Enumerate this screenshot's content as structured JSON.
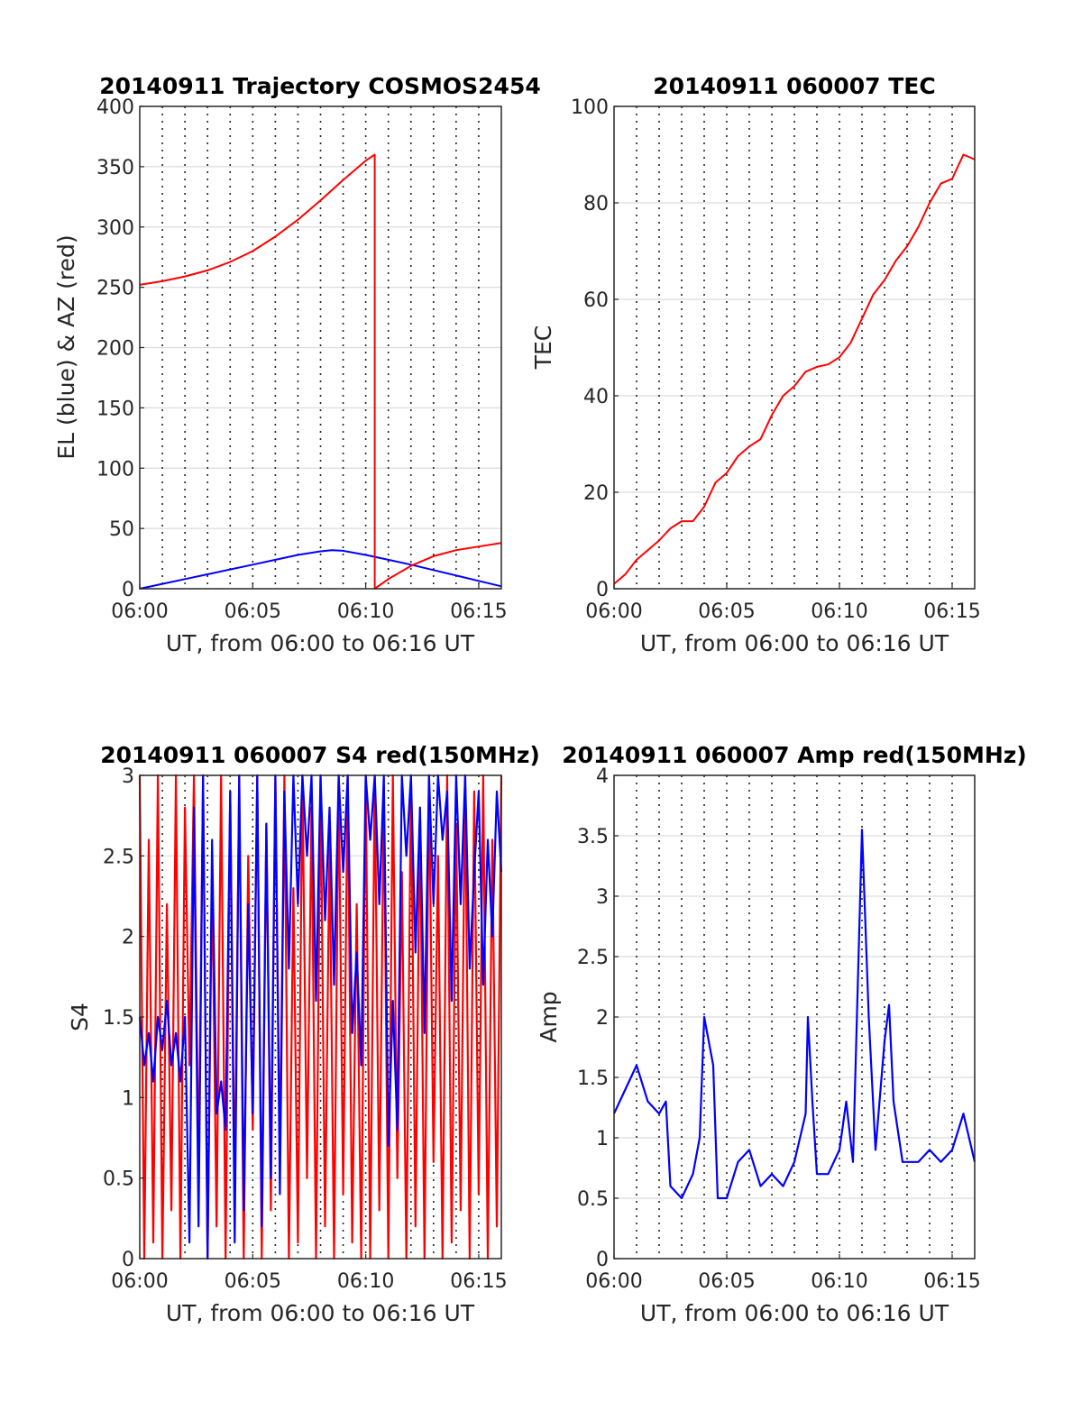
{
  "chart_data": [
    {
      "id": "traj",
      "type": "line",
      "title": "20140911 Trajectory COSMOS2454",
      "xlabel": "UT, from 06:00 to 06:16 UT",
      "ylabel": "EL (blue) & AZ (red)",
      "xlim": [
        "06:00",
        "06:16"
      ],
      "x_ticks": [
        "06:00",
        "06:05",
        "06:10",
        "06:15"
      ],
      "ylim": [
        0,
        400
      ],
      "y_ticks": [
        "0",
        "50",
        "100",
        "150",
        "200",
        "250",
        "300",
        "350",
        "400"
      ],
      "grid": "vertical dotted each minute, horizontal solid at y ticks",
      "series": [
        {
          "color": "#0000ff",
          "x": [
            "06:00",
            "06:01",
            "06:02",
            "06:03",
            "06:04",
            "06:05",
            "06:06",
            "06:07",
            "06:08",
            "06:08.5",
            "06:09",
            "06:10",
            "06:11",
            "06:12",
            "06:13",
            "06:14",
            "06:15",
            "06:16"
          ],
          "y": [
            0,
            4,
            8,
            12,
            16,
            20,
            24,
            28,
            31,
            32,
            31.5,
            28,
            24,
            20,
            15.5,
            11,
            6.5,
            2
          ]
        },
        {
          "color": "#ff0000",
          "x": [
            "06:00",
            "06:01",
            "06:02",
            "06:03",
            "06:04",
            "06:05",
            "06:06",
            "06:07",
            "06:08",
            "06:09",
            "06:10",
            "06:10.4",
            "06:10.4",
            "06:11",
            "06:12",
            "06:13",
            "06:14",
            "06:15",
            "06:16"
          ],
          "y": [
            252,
            255,
            259,
            264,
            271,
            280,
            292,
            306,
            322,
            339,
            355,
            360,
            0,
            8,
            19,
            27,
            32,
            35,
            38
          ]
        }
      ]
    },
    {
      "id": "tec",
      "type": "line",
      "title": "20140911 060007 TEC",
      "xlabel": "UT, from 06:00 to 06:16 UT",
      "ylabel": "TEC",
      "xlim": [
        "06:00",
        "06:16"
      ],
      "x_ticks": [
        "06:00",
        "06:05",
        "06:10",
        "06:15"
      ],
      "ylim": [
        0,
        100
      ],
      "y_ticks": [
        "0",
        "20",
        "40",
        "60",
        "80",
        "100"
      ],
      "grid": "vertical dotted each minute, horizontal solid at y ticks",
      "series": [
        {
          "color": "#ff0000",
          "x": [
            "06:00",
            "06:00.5",
            "06:01",
            "06:01.5",
            "06:02",
            "06:02.5",
            "06:03",
            "06:03.5",
            "06:04",
            "06:04.5",
            "06:05",
            "06:05.5",
            "06:06",
            "06:06.5",
            "06:07",
            "06:07.5",
            "06:08",
            "06:08.5",
            "06:09",
            "06:09.5",
            "06:10",
            "06:10.5",
            "06:11",
            "06:11.5",
            "06:12",
            "06:12.5",
            "06:13",
            "06:13.5",
            "06:14",
            "06:14.5",
            "06:15",
            "06:15.5",
            "06:16"
          ],
          "y": [
            1,
            3,
            6,
            8,
            10,
            12.5,
            14,
            14,
            17,
            22,
            24,
            27.5,
            29.5,
            31,
            36,
            40,
            42,
            45,
            46,
            46.5,
            48,
            51,
            56,
            61,
            64,
            68,
            71,
            75,
            80,
            84,
            85,
            90,
            89
          ]
        }
      ]
    },
    {
      "id": "s4",
      "type": "line",
      "title": "20140911 060007 S4 red(150MHz)",
      "xlabel": "UT, from 06:00 to 06:16 UT",
      "ylabel": "S4",
      "xlim": [
        "06:00",
        "06:16"
      ],
      "x_ticks": [
        "06:00",
        "06:05",
        "06:10",
        "06:15"
      ],
      "ylim": [
        0,
        3
      ],
      "y_ticks": [
        "0",
        "0.5",
        "1",
        "1.5",
        "2",
        "2.5",
        "3"
      ],
      "grid": "vertical dotted each minute, horizontal solid at y ticks",
      "series": [
        {
          "color": "#ff0000",
          "x": [
            "06:00",
            "06:00.2",
            "06:00.4",
            "06:00.6",
            "06:00.8",
            "06:01",
            "06:01.2",
            "06:01.4",
            "06:01.6",
            "06:01.8",
            "06:02",
            "06:02.2",
            "06:02.4",
            "06:02.6",
            "06:02.8",
            "06:03",
            "06:03.2",
            "06:03.4",
            "06:03.6",
            "06:03.8",
            "06:04",
            "06:04.2",
            "06:04.4",
            "06:04.6",
            "06:04.8",
            "06:05",
            "06:05.2",
            "06:05.4",
            "06:05.6",
            "06:05.8",
            "06:06",
            "06:06.2",
            "06:06.4",
            "06:06.6",
            "06:06.8",
            "06:07",
            "06:07.2",
            "06:07.4",
            "06:07.6",
            "06:07.8",
            "06:08",
            "06:08.2",
            "06:08.4",
            "06:08.6",
            "06:08.8",
            "06:09",
            "06:09.2",
            "06:09.4",
            "06:09.6",
            "06:09.8",
            "06:10",
            "06:10.2",
            "06:10.4",
            "06:10.6",
            "06:10.8",
            "06:11",
            "06:11.2",
            "06:11.4",
            "06:11.6",
            "06:11.8",
            "06:12",
            "06:12.2",
            "06:12.4",
            "06:12.6",
            "06:12.8",
            "06:13",
            "06:13.2",
            "06:13.4",
            "06:13.6",
            "06:13.8",
            "06:14",
            "06:14.2",
            "06:14.4",
            "06:14.6",
            "06:14.8",
            "06:15",
            "06:15.2",
            "06:15.4",
            "06:15.6",
            "06:15.8",
            "06:16"
          ],
          "y": [
            3,
            0,
            2.6,
            0.1,
            3,
            0,
            2.2,
            0.3,
            3,
            0,
            2.8,
            1.2,
            3,
            0.5,
            3,
            0,
            2.4,
            0.2,
            3,
            0,
            2.9,
            0.4,
            3,
            0,
            2.5,
            0.8,
            3,
            0,
            2.7,
            0.3,
            3,
            0.6,
            3,
            0,
            2.3,
            0.1,
            3,
            0.5,
            2.8,
            0,
            3,
            0.2,
            2.6,
            0,
            3,
            0.4,
            3,
            0.1,
            2.2,
            0,
            3,
            0,
            3,
            0.3,
            2.9,
            0,
            3,
            0.5,
            2.4,
            0,
            3,
            0.2,
            2.8,
            0,
            3,
            0.6,
            2.5,
            0,
            3,
            0.1,
            2.7,
            0.3,
            3,
            0,
            2.9,
            0.4,
            3,
            0,
            2.6,
            0.2,
            3
          ]
        },
        {
          "color": "#0000ff",
          "x": [
            "06:00",
            "06:00.2",
            "06:00.4",
            "06:00.6",
            "06:00.8",
            "06:01",
            "06:01.2",
            "06:01.4",
            "06:01.6",
            "06:01.8",
            "06:02",
            "06:02.2",
            "06:02.4",
            "06:02.6",
            "06:02.8",
            "06:03",
            "06:03.2",
            "06:03.4",
            "06:03.6",
            "06:03.8",
            "06:04",
            "06:04.2",
            "06:04.4",
            "06:04.6",
            "06:04.8",
            "06:05",
            "06:05.2",
            "06:05.4",
            "06:05.6",
            "06:05.8",
            "06:06",
            "06:06.2",
            "06:06.4",
            "06:06.6",
            "06:06.8",
            "06:07",
            "06:07.2",
            "06:07.4",
            "06:07.6",
            "06:07.8",
            "06:08",
            "06:08.2",
            "06:08.4",
            "06:08.6",
            "06:08.8",
            "06:09",
            "06:09.2",
            "06:09.4",
            "06:09.6",
            "06:09.8",
            "06:10",
            "06:10.2",
            "06:10.4",
            "06:10.6",
            "06:10.8",
            "06:11",
            "06:11.2",
            "06:11.4",
            "06:11.6",
            "06:11.8",
            "06:12",
            "06:12.2",
            "06:12.4",
            "06:12.6",
            "06:12.8",
            "06:13",
            "06:13.2",
            "06:13.4",
            "06:13.6",
            "06:13.8",
            "06:14",
            "06:14.2",
            "06:14.4",
            "06:14.6",
            "06:14.8",
            "06:15",
            "06:15.2",
            "06:15.4",
            "06:15.6",
            "06:15.8",
            "06:16"
          ],
          "y": [
            1.5,
            1.2,
            1.4,
            1.1,
            1.5,
            1.3,
            1.6,
            1.2,
            1.4,
            1.1,
            1.5,
            0.1,
            2.8,
            0.2,
            3,
            0,
            2.6,
            0.9,
            1.1,
            0.8,
            2.9,
            0.1,
            3,
            0.3,
            2.2,
            0.9,
            3,
            0.2,
            2.7,
            0.5,
            3,
            0.4,
            2.9,
            1.8,
            3,
            2.2,
            3,
            2.5,
            3,
            1.6,
            3,
            2.1,
            2.8,
            1.7,
            3,
            2.4,
            3,
            1.4,
            1.9,
            1.2,
            3,
            2.6,
            3,
            2.2,
            3,
            0.7,
            1.6,
            0.8,
            3,
            2.5,
            3,
            1.9,
            2.8,
            1.4,
            3,
            2.2,
            3,
            2.6,
            2.9,
            1.6,
            3,
            2.2,
            3,
            1.8,
            2.4,
            2.9,
            1.7,
            2.6,
            2.0,
            2.9,
            2.4
          ]
        }
      ]
    },
    {
      "id": "amp",
      "type": "line",
      "title": "20140911 060007 Amp red(150MHz)",
      "xlabel": "UT, from 06:00 to 06:16 UT",
      "ylabel": "Amp",
      "xlim": [
        "06:00",
        "06:16"
      ],
      "x_ticks": [
        "06:00",
        "06:05",
        "06:10",
        "06:15"
      ],
      "ylim": [
        0,
        4
      ],
      "y_ticks": [
        "0",
        "0.5",
        "1",
        "1.5",
        "2",
        "2.5",
        "3",
        "3.5",
        "4"
      ],
      "grid": "vertical dotted each minute, horizontal solid at y ticks",
      "series": [
        {
          "color": "#0000ff",
          "x": [
            "06:00",
            "06:00.5",
            "06:01",
            "06:01.5",
            "06:02",
            "06:02.3",
            "06:02.5",
            "06:03",
            "06:03.5",
            "06:03.8",
            "06:04",
            "06:04.4",
            "06:04.6",
            "06:05",
            "06:05.5",
            "06:06",
            "06:06.5",
            "06:07",
            "06:07.5",
            "06:08",
            "06:08.5",
            "06:08.6",
            "06:08.8",
            "06:09",
            "06:09.5",
            "06:10",
            "06:10.3",
            "06:10.6",
            "06:11",
            "06:11.3",
            "06:11.6",
            "06:12",
            "06:12.2",
            "06:12.4",
            "06:12.8",
            "06:13",
            "06:13.5",
            "06:14",
            "06:14.5",
            "06:15",
            "06:15.5",
            "06:16"
          ],
          "y": [
            1.2,
            1.4,
            1.6,
            1.3,
            1.2,
            1.3,
            0.6,
            0.5,
            0.7,
            1.0,
            2.0,
            1.6,
            0.5,
            0.5,
            0.8,
            0.9,
            0.6,
            0.7,
            0.6,
            0.8,
            1.2,
            2.0,
            1.3,
            0.7,
            0.7,
            0.9,
            1.3,
            0.8,
            3.55,
            2.0,
            0.9,
            1.8,
            2.1,
            1.3,
            0.8,
            0.8,
            0.8,
            0.9,
            0.8,
            0.9,
            1.2,
            0.8
          ]
        }
      ]
    }
  ]
}
